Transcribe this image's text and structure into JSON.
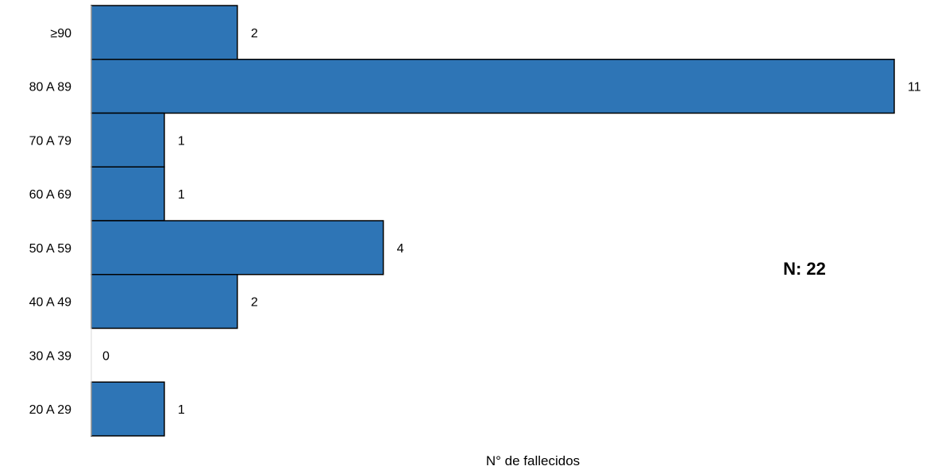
{
  "chart_data": {
    "type": "bar",
    "orientation": "horizontal",
    "categories": [
      "≥90",
      "80 A 89",
      "70 A 79",
      "60 A 69",
      "50 A 59",
      "40 A 49",
      "30 A 39",
      "20 A 29"
    ],
    "values": [
      2,
      11,
      1,
      1,
      4,
      2,
      0,
      1
    ],
    "title": "",
    "xlabel": "N° de fallecidos",
    "ylabel": "",
    "xlim": [
      0,
      11
    ],
    "grid": false,
    "bar_color": "#2E75B6",
    "bar_border_color": "#000000",
    "annotation": "N: 22"
  }
}
